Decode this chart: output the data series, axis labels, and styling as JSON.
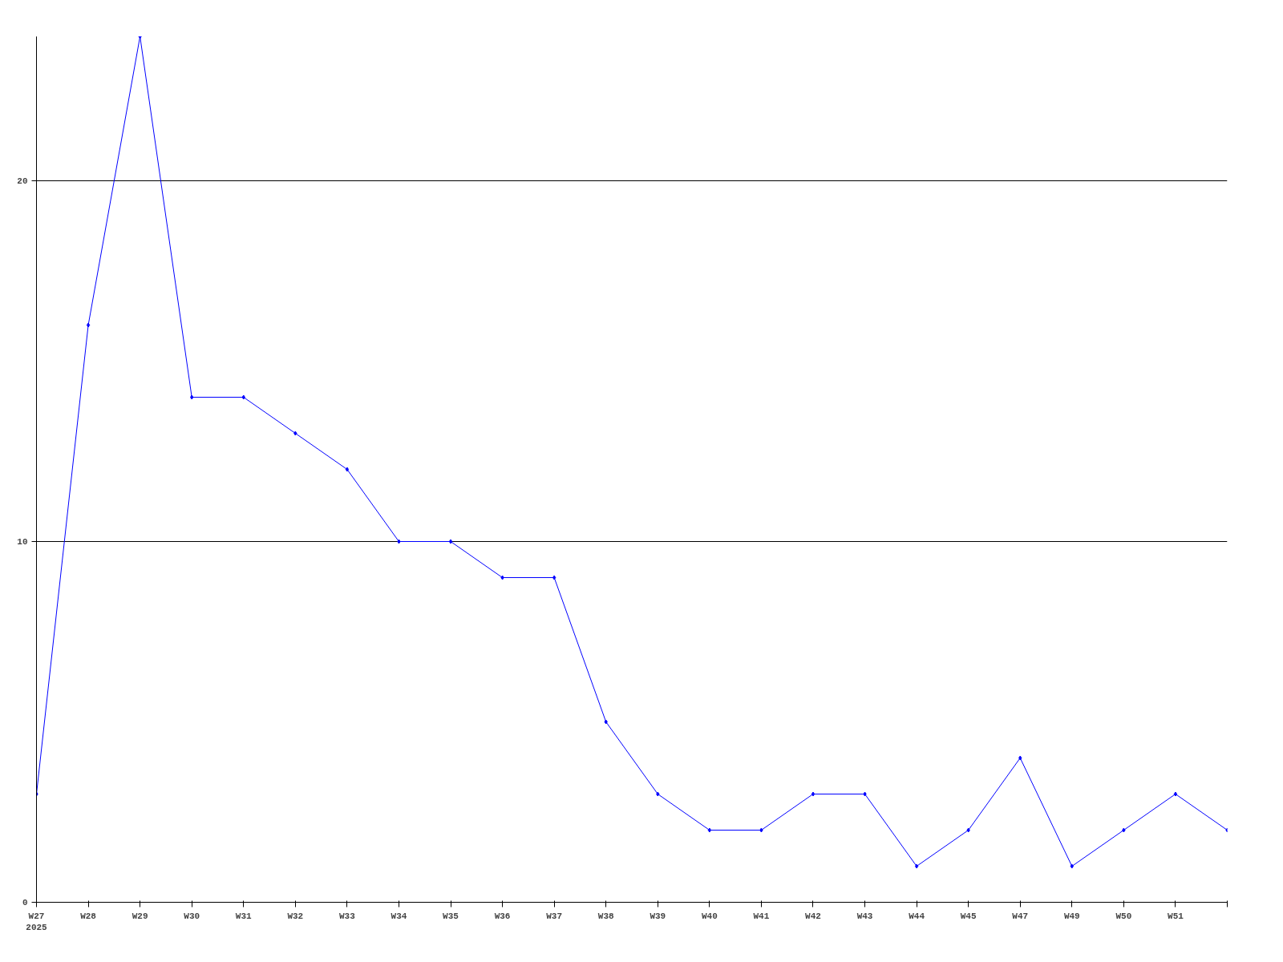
{
  "chart_data": {
    "type": "line",
    "categories": [
      "W27\n2025",
      "W28",
      "W29",
      "W30",
      "W31",
      "W32",
      "W33",
      "W34",
      "W35",
      "W36",
      "W37",
      "W38",
      "W39",
      "W40",
      "W41",
      "W42",
      "W43",
      "W44",
      "W45",
      "W47",
      "W49",
      "W50",
      "W51",
      null
    ],
    "series": [
      {
        "color": "#0000ff",
        "values": [
          3,
          16,
          24,
          14,
          14,
          13,
          12,
          10,
          10,
          9,
          9,
          5,
          3,
          2,
          2,
          3,
          3,
          1,
          2,
          4,
          1,
          2,
          3,
          2
        ]
      }
    ],
    "ylim": [
      0,
      24
    ],
    "yticks": [
      0,
      10,
      20
    ],
    "grid": "y",
    "marker": "diamond",
    "line_style": "solid"
  }
}
